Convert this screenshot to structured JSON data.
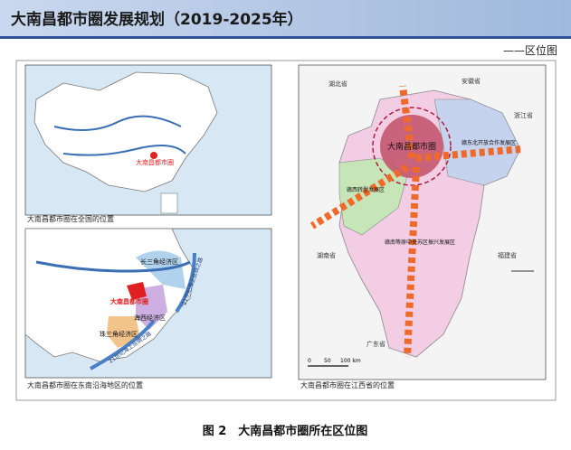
{
  "header": {
    "title": "大南昌都市圈发展规划（2019-2025年）",
    "subtitle": "——区位图"
  },
  "panels": [
    {
      "caption": "大南昌都市圈在全国的位置",
      "labels": [
        "大南昌都市圈"
      ]
    },
    {
      "caption": "大南昌都市圈在东南沿海地区的位置",
      "labels": [
        "长三角经济区",
        "大南昌都市圈",
        "海西经济区",
        "珠三角经济区",
        "21世纪海上丝绸之路",
        "21世纪海上丝绸之路"
      ]
    },
    {
      "caption": "大南昌都市圈在江西省的位置",
      "labels": [
        "湖北省",
        "安徽省",
        "浙江省",
        "湖南省",
        "福建省",
        "广东省",
        "大南昌都市圈",
        "赣东北开放合作发展区",
        "赣西转型发展区",
        "赣南等原中央苏区振兴发展区"
      ],
      "scale": [
        "0",
        "50",
        "100 km"
      ]
    }
  ],
  "figure_caption": "图 2　大南昌都市圈所在区位图"
}
